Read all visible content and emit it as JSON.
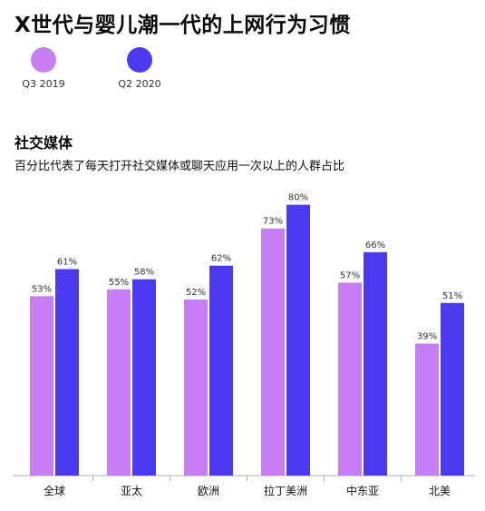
{
  "title": "X世代与婴儿潮一代的上网行为习惯",
  "section_title": "社交媒体",
  "subtitle": "百分比代表了每天打开社交媒体或聊天应用一次以上的人群占比",
  "colors": {
    "series_q3_2019": "#C77DF3",
    "series_q2_2020": "#4B3AF0",
    "axis": "#b0b0b0"
  },
  "chart_data": {
    "type": "bar",
    "title": "社交媒体",
    "subtitle": "百分比代表了每天打开社交媒体或聊天应用一次以上的人群占比",
    "xlabel": "",
    "ylabel": "",
    "ylim": [
      0,
      100
    ],
    "grid": false,
    "legend_position": "top-left",
    "categories": [
      "全球",
      "亚太",
      "欧洲",
      "拉丁美洲",
      "中东亚",
      "北美"
    ],
    "series": [
      {
        "name": "Q3 2019",
        "values": [
          53,
          55,
          52,
          73,
          57,
          39
        ],
        "labels": [
          "53%",
          "55%",
          "52%",
          "73%",
          "57%",
          "39%"
        ]
      },
      {
        "name": "Q2 2020",
        "values": [
          61,
          58,
          62,
          80,
          66,
          51
        ],
        "labels": [
          "61%",
          "58%",
          "62%",
          "80%",
          "66%",
          "51%"
        ]
      }
    ]
  }
}
